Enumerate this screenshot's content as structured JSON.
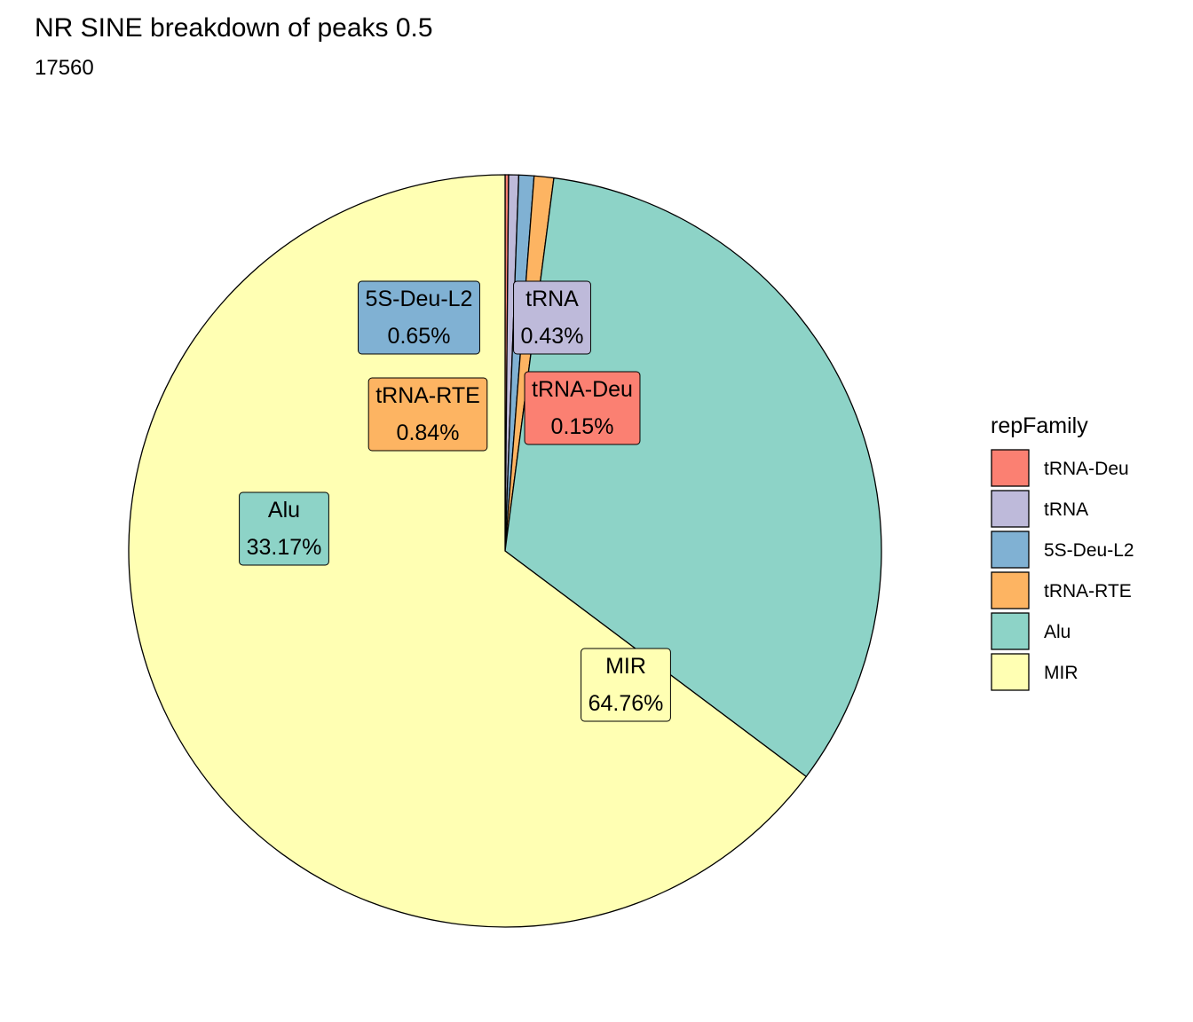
{
  "chart_data": {
    "type": "pie",
    "title": "NR SINE breakdown of peaks 0.5",
    "subtitle": "17560",
    "legend": {
      "title": "repFamily",
      "placement": "right",
      "entries": [
        "tRNA-Deu",
        "tRNA",
        "5S-Deu-L2",
        "tRNA-RTE",
        "Alu",
        "MIR"
      ]
    },
    "slices": [
      {
        "name": "tRNA-Deu",
        "value": 0.15,
        "label": "0.15%",
        "color": "#FB8072"
      },
      {
        "name": "tRNA",
        "value": 0.43,
        "label": "0.43%",
        "color": "#BEBADA"
      },
      {
        "name": "5S-Deu-L2",
        "value": 0.65,
        "label": "0.65%",
        "color": "#80B1D3"
      },
      {
        "name": "tRNA-RTE",
        "value": 0.84,
        "label": "0.84%",
        "color": "#FDB462"
      },
      {
        "name": "Alu",
        "value": 33.17,
        "label": "33.17%",
        "color": "#8DD3C7"
      },
      {
        "name": "MIR",
        "value": 64.76,
        "label": "64.76%",
        "color": "#FFFFB3"
      }
    ]
  }
}
